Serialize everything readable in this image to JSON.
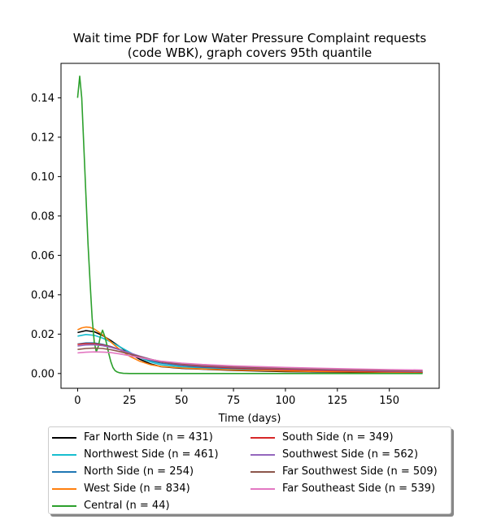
{
  "chart_data": {
    "type": "line",
    "title": "Wait time PDF for Low Water Pressure Complaint  requests\n(code WBK), graph covers 95th quantile",
    "xlabel": "Time (days)",
    "ylabel": "",
    "xlim": [
      -8,
      174
    ],
    "ylim": [
      -0.0075,
      0.1575
    ],
    "xticks": [
      0,
      25,
      50,
      75,
      100,
      125,
      150
    ],
    "yticks": [
      0.0,
      0.02,
      0.04,
      0.06,
      0.08,
      0.1,
      0.12,
      0.14
    ],
    "ytick_labels": [
      "0.00",
      "0.02",
      "0.04",
      "0.06",
      "0.08",
      "0.10",
      "0.12",
      "0.14"
    ],
    "grid": false,
    "legend_placement": "below plot, two columns",
    "series": [
      {
        "name": "Far North Side (n = 431)",
        "color": "#000000",
        "x": [
          0,
          4,
          8,
          12,
          16,
          20,
          25,
          30,
          35,
          40,
          50,
          60,
          75,
          100,
          125,
          150,
          166
        ],
        "y": [
          0.0208,
          0.0218,
          0.0212,
          0.0193,
          0.0167,
          0.0138,
          0.0102,
          0.0072,
          0.0049,
          0.0035,
          0.0026,
          0.0022,
          0.0016,
          0.001,
          0.0007,
          0.0005,
          0.0004
        ]
      },
      {
        "name": "Northwest Side (n = 461)",
        "color": "#17becf",
        "x": [
          0,
          4,
          8,
          12,
          16,
          20,
          25,
          30,
          35,
          40,
          50,
          60,
          75,
          100,
          125,
          150,
          166
        ],
        "y": [
          0.019,
          0.0198,
          0.0194,
          0.018,
          0.016,
          0.0138,
          0.0108,
          0.008,
          0.0059,
          0.0045,
          0.0033,
          0.0028,
          0.0022,
          0.0015,
          0.0011,
          0.0008,
          0.0006
        ]
      },
      {
        "name": "North Side (n = 254)",
        "color": "#1f77b4",
        "x": [
          0,
          4,
          8,
          12,
          16,
          20,
          25,
          30,
          35,
          40,
          50,
          60,
          75,
          100,
          125,
          150,
          166
        ],
        "y": [
          0.015,
          0.0155,
          0.0155,
          0.0148,
          0.0137,
          0.0123,
          0.0103,
          0.0083,
          0.0066,
          0.0053,
          0.004,
          0.0032,
          0.0025,
          0.0017,
          0.0012,
          0.0008,
          0.0006
        ]
      },
      {
        "name": "West Side (n = 834)",
        "color": "#ff7f0e",
        "x": [
          0,
          2,
          4,
          6,
          8,
          12,
          16,
          20,
          25,
          30,
          35,
          40,
          50,
          60,
          75,
          100,
          125,
          150,
          166
        ],
        "y": [
          0.0222,
          0.0232,
          0.0236,
          0.0234,
          0.0226,
          0.0197,
          0.016,
          0.0124,
          0.0088,
          0.0062,
          0.0045,
          0.0036,
          0.0028,
          0.0023,
          0.0018,
          0.0013,
          0.0009,
          0.0007,
          0.0005
        ]
      },
      {
        "name": "Central (n = 44)",
        "color": "#2ca02c",
        "x": [
          0,
          1,
          2,
          3,
          4,
          5,
          6,
          7,
          8,
          9,
          10,
          11,
          12,
          13,
          14,
          15,
          16,
          17,
          18,
          19,
          20,
          22,
          25,
          30,
          50,
          75,
          100,
          125,
          150,
          166
        ],
        "y": [
          0.14,
          0.151,
          0.14,
          0.115,
          0.09,
          0.066,
          0.046,
          0.028,
          0.016,
          0.011,
          0.014,
          0.019,
          0.022,
          0.019,
          0.015,
          0.01,
          0.006,
          0.003,
          0.0015,
          0.0008,
          0.0004,
          0.0001,
          0.0,
          0.0,
          0.0,
          0.0,
          0.0,
          0.0,
          0.0,
          0.0
        ]
      },
      {
        "name": "South Side (n = 349)",
        "color": "#d62728",
        "x": [
          0,
          4,
          8,
          12,
          16,
          20,
          25,
          30,
          35,
          40,
          50,
          60,
          75,
          100,
          125,
          150,
          166
        ],
        "y": [
          0.0148,
          0.0152,
          0.0151,
          0.0145,
          0.0135,
          0.0122,
          0.0104,
          0.0086,
          0.0071,
          0.0059,
          0.0045,
          0.0037,
          0.0029,
          0.002,
          0.0014,
          0.001,
          0.0008
        ]
      },
      {
        "name": "Southwest Side (n = 562)",
        "color": "#9467bd",
        "x": [
          0,
          4,
          8,
          12,
          16,
          20,
          25,
          30,
          35,
          40,
          50,
          60,
          75,
          100,
          125,
          150,
          166
        ],
        "y": [
          0.014,
          0.0145,
          0.0146,
          0.0141,
          0.0133,
          0.0121,
          0.0105,
          0.0088,
          0.0073,
          0.0061,
          0.0047,
          0.004,
          0.0033,
          0.0024,
          0.0018,
          0.0013,
          0.0011
        ]
      },
      {
        "name": "Far Southwest Side (n = 509)",
        "color": "#8c564b",
        "x": [
          0,
          4,
          8,
          12,
          16,
          20,
          25,
          30,
          35,
          40,
          50,
          60,
          75,
          100,
          125,
          150,
          166
        ],
        "y": [
          0.0122,
          0.0127,
          0.0129,
          0.0127,
          0.0121,
          0.0112,
          0.0099,
          0.0085,
          0.0072,
          0.0062,
          0.0049,
          0.0042,
          0.0035,
          0.0027,
          0.0021,
          0.0016,
          0.0014
        ]
      },
      {
        "name": "Far Southeast Side (n = 539)",
        "color": "#e377c2",
        "x": [
          0,
          4,
          8,
          12,
          16,
          20,
          25,
          30,
          35,
          40,
          50,
          60,
          75,
          100,
          125,
          150,
          166
        ],
        "y": [
          0.0105,
          0.0108,
          0.011,
          0.0109,
          0.0106,
          0.01,
          0.0091,
          0.0081,
          0.0071,
          0.0063,
          0.0053,
          0.0046,
          0.0039,
          0.0031,
          0.0025,
          0.002,
          0.0018
        ]
      }
    ]
  }
}
